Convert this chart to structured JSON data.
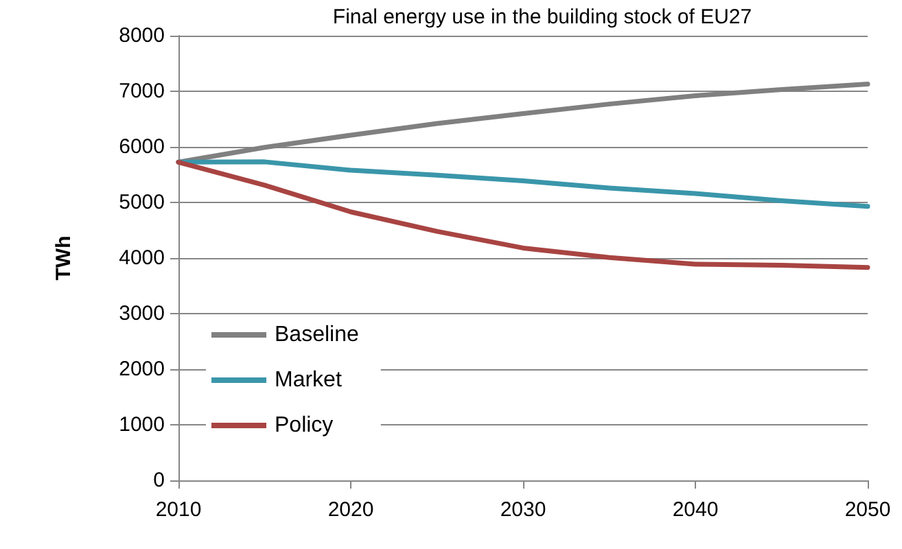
{
  "chart_data": {
    "type": "line",
    "title": "Final energy use in the building stock of EU27",
    "ylabel": "TWh",
    "x": [
      2010,
      2015,
      2020,
      2025,
      2030,
      2035,
      2040,
      2045,
      2050
    ],
    "series": [
      {
        "name": "Baseline",
        "color": "#808080",
        "values": [
          5725,
          5990,
          6210,
          6420,
          6600,
          6770,
          6920,
          7030,
          7130
        ]
      },
      {
        "name": "Market",
        "color": "#3a96aa",
        "values": [
          5725,
          5730,
          5580,
          5490,
          5390,
          5260,
          5160,
          5030,
          4930
        ]
      },
      {
        "name": "Policy",
        "color": "#a84442",
        "values": [
          5725,
          5310,
          4830,
          4480,
          4180,
          4010,
          3890,
          3870,
          3830
        ]
      }
    ],
    "xlim": [
      2010,
      2050
    ],
    "xticks": [
      2010,
      2020,
      2030,
      2040,
      2050
    ],
    "ylim": [
      0,
      8000
    ],
    "yticks": [
      0,
      1000,
      2000,
      3000,
      4000,
      5000,
      6000,
      7000,
      8000
    ],
    "grid": "y",
    "legend": "bottom left",
    "marker": "none",
    "line_style": "solid"
  }
}
